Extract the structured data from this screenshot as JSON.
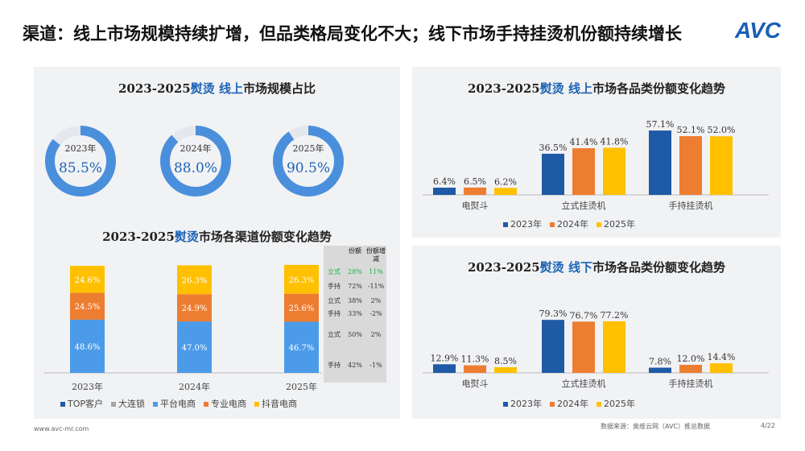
{
  "header": {
    "title": "渠道：线上市场规模持续扩增，但品类格局变化不大；线下市场手持挂烫机份额持续增长",
    "logo": "AVC"
  },
  "left_top": {
    "title_a": "2023-2025",
    "title_b": "熨烫 线上",
    "title_c": "市场规模占比",
    "items": [
      {
        "year": "2023年",
        "value": "85.5%",
        "pct": 85.5
      },
      {
        "year": "2024年",
        "value": "88.0%",
        "pct": 88.0
      },
      {
        "year": "2025年",
        "value": "90.5%",
        "pct": 90.5
      }
    ]
  },
  "left_bottom": {
    "title_a": "2023-2025",
    "title_b": "熨烫",
    "title_c": "市场各渠道份额变化趋势",
    "chart_data": {
      "type": "bar",
      "stacked": true,
      "categories": [
        "2023年",
        "2024年",
        "2025年"
      ],
      "series": [
        {
          "name": "TOP客户",
          "color": "#1f5aa6",
          "values": [
            0,
            0,
            0
          ]
        },
        {
          "name": "大连锁",
          "color": "#a5a5a5",
          "values": [
            0,
            0,
            0
          ]
        },
        {
          "name": "平台电商",
          "color": "#4b9be8",
          "values": [
            48.6,
            47.0,
            46.7
          ]
        },
        {
          "name": "专业电商",
          "color": "#ed7d31",
          "values": [
            24.5,
            24.9,
            25.6
          ]
        },
        {
          "name": "抖音电商",
          "color": "#ffc000",
          "values": [
            24.6,
            26.3,
            26.3
          ]
        }
      ],
      "labels": [
        [
          "48.6%",
          "24.5%",
          "24.6%"
        ],
        [
          "47.0%",
          "24.9%",
          "26.3%"
        ],
        [
          "46.7%",
          "25.6%",
          "26.3%"
        ]
      ]
    },
    "table": {
      "headers": [
        "",
        "份额",
        "份额增减"
      ],
      "rows": [
        [
          "立式",
          "28%",
          "11%"
        ],
        [
          "手持",
          "72%",
          "-11%"
        ],
        [
          "立式",
          "38%",
          "2%"
        ],
        [
          "手持",
          "33%",
          "-2%"
        ],
        [
          "立式",
          "50%",
          "2%"
        ],
        [
          "手持",
          "42%",
          "-1%"
        ]
      ]
    }
  },
  "right_top": {
    "title_a": "2023-2025",
    "title_b": "熨烫 线上",
    "title_c": "市场各品类份额变化趋势",
    "chart_data": {
      "type": "bar",
      "categories": [
        "电熨斗",
        "立式挂烫机",
        "手持挂烫机"
      ],
      "series": [
        {
          "name": "2023年",
          "color": "#1f5aa6",
          "values": [
            6.4,
            36.5,
            57.1
          ]
        },
        {
          "name": "2024年",
          "color": "#ed7d31",
          "values": [
            6.5,
            41.4,
            52.1
          ]
        },
        {
          "name": "2025年",
          "color": "#ffc000",
          "values": [
            6.2,
            41.8,
            52.0
          ]
        }
      ]
    }
  },
  "right_bottom": {
    "title_a": "2023-2025",
    "title_b": "熨烫 线下",
    "title_c": "市场各品类份额变化趋势",
    "chart_data": {
      "type": "bar",
      "categories": [
        "电熨斗",
        "立式挂烫机",
        "手持挂烫机"
      ],
      "series": [
        {
          "name": "2023年",
          "color": "#1f5aa6",
          "values": [
            12.9,
            79.3,
            7.8
          ]
        },
        {
          "name": "2024年",
          "color": "#ed7d31",
          "values": [
            11.3,
            76.7,
            12.0
          ]
        },
        {
          "name": "2025年",
          "color": "#ffc000",
          "values": [
            8.5,
            77.2,
            14.4
          ]
        }
      ]
    }
  },
  "footer": {
    "url": "www.avc-mr.com",
    "source": "数据来源：奥维云网（AVC）推总数据",
    "page": "4/22"
  }
}
